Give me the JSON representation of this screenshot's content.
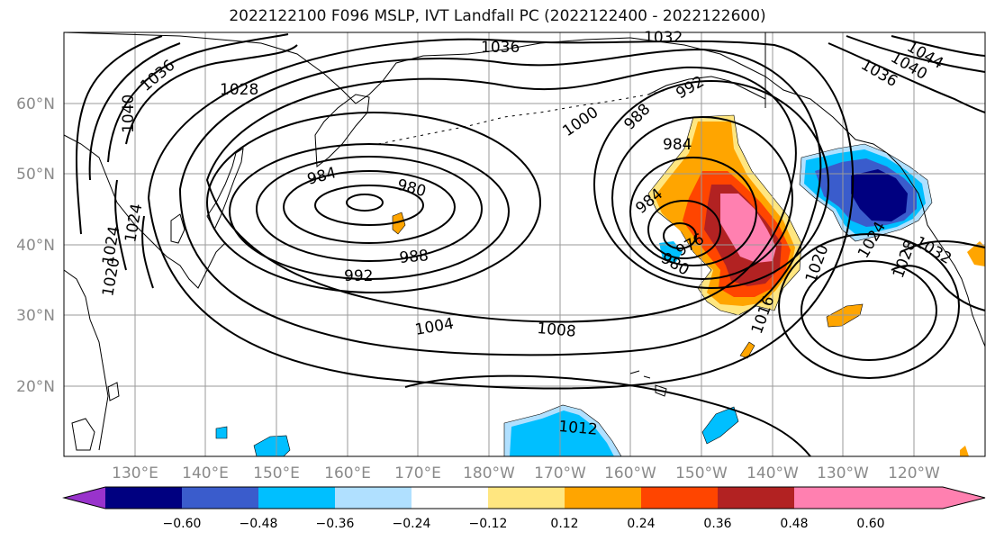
{
  "title": "2022122100 F096 MSLP, IVT Landfall PC (2022122400 - 2022122600)",
  "lat_labels": [
    "60°N",
    "50°N",
    "40°N",
    "30°N",
    "20°N"
  ],
  "lon_labels": [
    "130°E",
    "140°E",
    "150°E",
    "160°E",
    "170°E",
    "180°W",
    "170°W",
    "160°W",
    "150°W",
    "140°W",
    "130°W",
    "120°W"
  ],
  "contour_labels": [
    "1036",
    "1032",
    "1044",
    "1040",
    "1036",
    "1036",
    "1028",
    "1040",
    "1024",
    "1024",
    "1020",
    "984",
    "980",
    "992",
    "988",
    "1000",
    "988",
    "992",
    "984",
    "984",
    "980",
    "976",
    "1020",
    "1024",
    "1032",
    "1028",
    "1016",
    "1004",
    "1008",
    "1012"
  ],
  "colorbar": {
    "ticks": [
      "−0.60",
      "−0.48",
      "−0.36",
      "−0.24",
      "−0.12",
      "0.12",
      "0.24",
      "0.36",
      "0.48",
      "0.60"
    ],
    "colors": [
      "#9933cc",
      "#000080",
      "#3a5ccc",
      "#00bfff",
      "#b0e0ff",
      "#ffffff",
      "#ffe680",
      "#ffa500",
      "#ff4500",
      "#b22222",
      "#ff80b0",
      "#ff80b0"
    ]
  },
  "colors": {
    "ocean": "#ffffff",
    "coast": "#000000",
    "contour": "#000000",
    "grid": "#9a9a9a"
  }
}
